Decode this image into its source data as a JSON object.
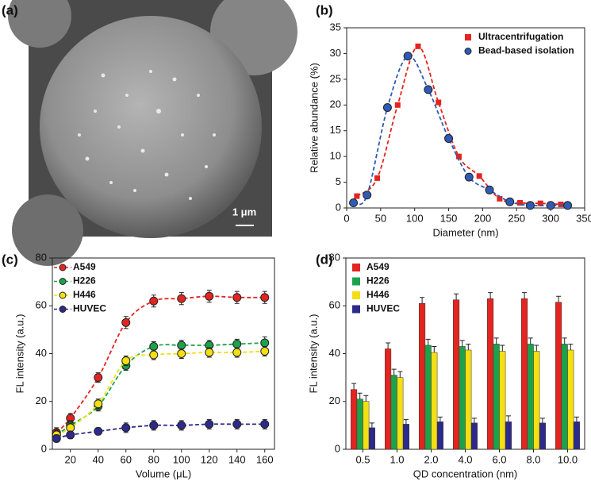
{
  "chart_data": [
    {
      "type": "image",
      "panel_label": "(a)",
      "scale_label": "1 μm"
    },
    {
      "type": "scatter",
      "panel_label": "(b)",
      "xlabel": "Diameter (nm)",
      "ylabel": "Relative abundance (%)",
      "xlim": [
        0,
        350
      ],
      "xticks": [
        0,
        50,
        100,
        150,
        200,
        250,
        300,
        350
      ],
      "ylim": [
        0,
        35
      ],
      "yticks": [
        0,
        5,
        10,
        15,
        20,
        25,
        30,
        35
      ],
      "legend": "upper right",
      "fit_line": true,
      "series": [
        {
          "name": "Ultracentrifugation",
          "color": "#e3241f",
          "marker": "square",
          "x": [
            15,
            45,
            75,
            105,
            135,
            165,
            195,
            225,
            255,
            285,
            315
          ],
          "values": [
            2.3,
            5.8,
            20,
            31.4,
            20.5,
            10,
            6.2,
            1.8,
            1,
            0.9,
            0.7
          ]
        },
        {
          "name": "Bead-based isolation",
          "color": "#2f5bb7",
          "marker": "circle",
          "x": [
            10,
            30,
            60,
            90,
            120,
            150,
            180,
            210,
            240,
            270,
            300,
            325
          ],
          "values": [
            1,
            2.5,
            19.5,
            29.5,
            23,
            13.5,
            6,
            3.5,
            1.2,
            0.5,
            0.5,
            0.5
          ]
        }
      ]
    },
    {
      "type": "line",
      "panel_label": "(c)",
      "xlabel": "Volume (μL)",
      "ylabel": "FL intensity (a.u.)",
      "xlim": [
        7,
        167
      ],
      "xticks": [
        20,
        40,
        60,
        80,
        100,
        120,
        140,
        160
      ],
      "ylim": [
        0,
        80
      ],
      "yticks": [
        0,
        20,
        40,
        60,
        80
      ],
      "legend": "upper left",
      "fit_line": true,
      "x": [
        10,
        20,
        40,
        60,
        80,
        100,
        120,
        140,
        160
      ],
      "series": [
        {
          "name": "A549",
          "color": "#e3241f",
          "values": [
            7,
            13,
            30,
            53,
            62,
            63,
            64,
            63.5,
            63.5
          ],
          "errors": [
            2,
            2,
            2,
            2.5,
            2.5,
            2.5,
            2.5,
            2.5,
            2.5
          ]
        },
        {
          "name": "H226",
          "color": "#1ba34b",
          "values": [
            6,
            10,
            18,
            35,
            43,
            43.5,
            43.5,
            44,
            44.5
          ],
          "errors": [
            2,
            2,
            2,
            2,
            2,
            2,
            2,
            2,
            2.5
          ]
        },
        {
          "name": "H446",
          "color": "#f3df12",
          "values": [
            6,
            9,
            19,
            37,
            39.5,
            40,
            40.5,
            40.5,
            41
          ],
          "errors": [
            2,
            2,
            2,
            2,
            2,
            2,
            2,
            2,
            2
          ]
        },
        {
          "name": "HUVEC",
          "color": "#2d2a8c",
          "values": [
            4.5,
            6,
            7.5,
            9,
            10,
            10,
            10.5,
            10.5,
            10.5
          ],
          "errors": [
            1.5,
            1.5,
            1.5,
            2,
            2,
            2,
            2,
            2,
            2
          ]
        }
      ]
    },
    {
      "type": "bar",
      "panel_label": "(d)",
      "xlabel": "QD concentration (nm)",
      "ylabel": "FL intensity (a.u.)",
      "categories": [
        "0.5",
        "1.0",
        "2.0",
        "4.0",
        "6.0",
        "8.0",
        "10.0"
      ],
      "ylim": [
        0,
        80
      ],
      "yticks": [
        0,
        20,
        40,
        60,
        80
      ],
      "legend": "upper left",
      "series": [
        {
          "name": "A549",
          "color": "#e3241f",
          "values": [
            25,
            42,
            61,
            62.5,
            63,
            63,
            61.5
          ],
          "errors": [
            2.5,
            2.5,
            2.5,
            2.5,
            2.5,
            2.5,
            2.5
          ]
        },
        {
          "name": "H226",
          "color": "#1ba34b",
          "values": [
            21,
            31,
            43.5,
            43,
            44,
            44,
            44
          ],
          "errors": [
            2.5,
            2.5,
            2.5,
            2.5,
            2.5,
            2.5,
            2.5
          ]
        },
        {
          "name": "H446",
          "color": "#f3df12",
          "values": [
            20,
            30,
            40.5,
            41.5,
            41,
            41,
            41.5
          ],
          "errors": [
            2.5,
            2.5,
            2.5,
            2.5,
            2.5,
            2.5,
            2.5
          ]
        },
        {
          "name": "HUVEC",
          "color": "#2d2a8c",
          "values": [
            9,
            10.5,
            11.5,
            11,
            11.5,
            11,
            11.5
          ],
          "errors": [
            2,
            2,
            2,
            2,
            2.5,
            2,
            2
          ]
        }
      ]
    }
  ]
}
